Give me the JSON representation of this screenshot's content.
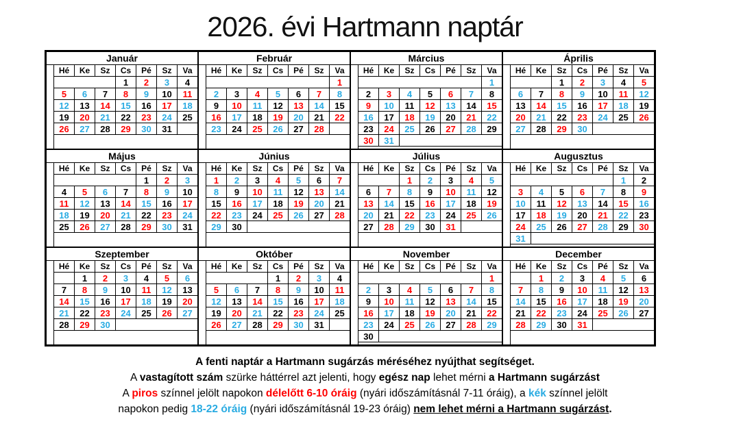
{
  "page_title": "2026. évi Hartmann naptár",
  "day_headers": [
    "Hé",
    "Ke",
    "Sz",
    "Cs",
    "Pé",
    "Sz",
    "Va"
  ],
  "color_map": {
    "k": "#000000",
    "r": "#ff0000",
    "b": "#29abe2"
  },
  "color_meaning": {
    "k": "normal-day",
    "r": "no-measure-morning-6-10",
    "b": "no-measure-evening-18-22",
    "gray-bold": "measure-all-day"
  },
  "months": [
    {
      "name": "Január",
      "start": 3,
      "colors": "krbkrbkrbkrbkrbkrbkrbkrbkrbkrbk"
    },
    {
      "name": "Február",
      "start": 6,
      "colors": "rbkrbkrbkrbkrbkrbkrbkrbkrbkr"
    },
    {
      "name": "Március",
      "start": 6,
      "colors": "bkrbkrbkrbkrbkrbkrbkrbkrbkrbkrb"
    },
    {
      "name": "Április",
      "start": 2,
      "colors": "krbkrbkrbkrbkrbkrbkrbkrbkrbkrb"
    },
    {
      "name": "Május",
      "start": 4,
      "colors": "krbkrbkrbkrbkrbkrbkrbkrbkrbkrbk"
    },
    {
      "name": "Június",
      "start": 0,
      "colors": "rbkrbkrbkrbkrbkrbkrbkrbkrbkrbk"
    },
    {
      "name": "Július",
      "start": 2,
      "colors": "rbkrbkrbkrbkrbkrbkrbkrbkrbkrbkr"
    },
    {
      "name": "Augusztus",
      "start": 5,
      "colors": "bkrbkrbkrbkrbkrbkrbkrbkrbkrbkrb"
    },
    {
      "name": "Szeptember",
      "start": 1,
      "colors": "krbkrbkrbkrbkrbkrbkrbkrbkrbkrb"
    },
    {
      "name": "Október",
      "start": 3,
      "colors": "krbkrbkrbkrbkrbkrbkrbkrbkrbkrbk"
    },
    {
      "name": "November",
      "start": 6,
      "colors": "rbkrbkrbkrbkrbkrbkrbkrbkrbkrbk"
    },
    {
      "name": "December",
      "start": 1,
      "colors": "rbkrbkrbkrbkrbkrbkrbkrbkrbkrbkr"
    }
  ],
  "legend": {
    "lines": [
      [
        {
          "t": "A fenti naptár a Hartmann sugárzás méréséhez nyújthat segítséget.",
          "b": true
        }
      ],
      [
        {
          "t": "A "
        },
        {
          "t": "vastagított szám",
          "b": true
        },
        {
          "t": " szürke háttérrel azt jelenti, hogy "
        },
        {
          "t": "egész nap",
          "b": true
        },
        {
          "t": " lehet mérni "
        },
        {
          "t": "a Hartmann sugárzást",
          "b": true
        }
      ],
      [
        {
          "t": "A "
        },
        {
          "t": "piros",
          "b": true,
          "c": "r"
        },
        {
          "t": " színnel jelölt napokon "
        },
        {
          "t": "délelőtt 6-10 óráig",
          "b": true,
          "c": "r"
        },
        {
          "t": " (nyári időszámításnál 7-11 óráig), a "
        },
        {
          "t": "kék",
          "b": true,
          "c": "b"
        },
        {
          "t": " színnel jelölt"
        }
      ],
      [
        {
          "t": "napokon pedig "
        },
        {
          "t": "18-22 óráig",
          "b": true,
          "c": "b"
        },
        {
          "t": " (nyári időszámításnál 19-23 óráig) "
        },
        {
          "t": "nem lehet mérni a Hartmann sugárzást",
          "b": true,
          "u": true
        },
        {
          "t": ".",
          "b": true
        }
      ]
    ]
  }
}
